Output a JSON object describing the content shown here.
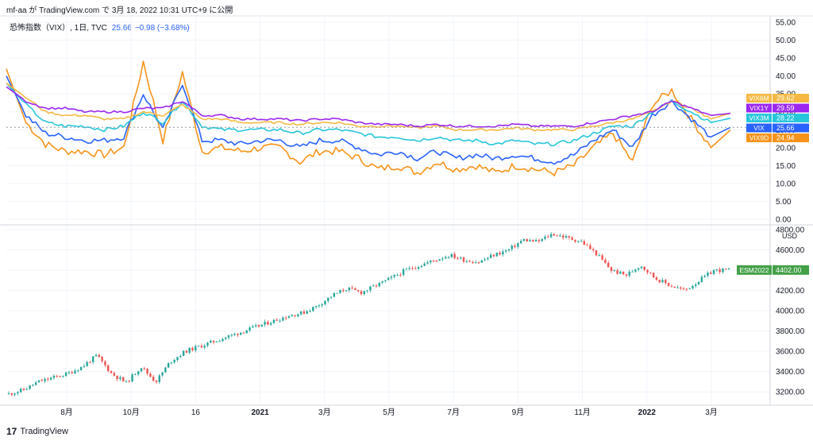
{
  "header": {
    "text": "mf-aa が TradingView.com で 3月 18, 2022 10:31 UTC+9 に公開"
  },
  "legend": {
    "name": "恐怖指数（VIX）, 1日, TVC",
    "value": "25.66",
    "change": "−0.98 (−3.68%)"
  },
  "footer": {
    "logo": "17",
    "brand": "TradingView"
  },
  "chart_data": [
    {
      "type": "line",
      "title": "",
      "ylim": [
        0,
        55
      ],
      "y_ticks": [
        "55.00",
        "50.00",
        "45.00",
        "40.00",
        "35.00",
        "30.00",
        "25.00",
        "20.00",
        "15.00",
        "10.00",
        "5.00",
        "0.00"
      ],
      "x_tick_labels": [
        "8月",
        "10月",
        "16",
        "2021",
        "3月",
        "5月",
        "7月",
        "9月",
        "11月",
        "2022",
        "3月"
      ],
      "series": [
        {
          "name": "VIX6M",
          "color": "#f5b942",
          "last_label": "29.62",
          "values": [
            38,
            34,
            30,
            29,
            29,
            28,
            28,
            30,
            29,
            32,
            28,
            28,
            27,
            27,
            27,
            26.5,
            27,
            27,
            26,
            26,
            26,
            25.5,
            26,
            25,
            25,
            25,
            25.5,
            25,
            25,
            25,
            26,
            27,
            28,
            30,
            33,
            31,
            28,
            29.62
          ]
        },
        {
          "name": "VIX1Y",
          "color": "#9c27f0",
          "last_label": "29.59",
          "values": [
            37,
            33,
            31,
            31,
            30,
            30,
            30,
            31,
            31,
            33,
            29,
            29,
            28,
            28,
            28,
            27.5,
            28,
            28,
            27,
            26.5,
            26.5,
            26,
            26.5,
            26,
            26,
            26,
            26.5,
            26,
            26,
            26,
            27,
            28,
            29,
            30,
            33,
            31,
            29,
            29.59
          ]
        },
        {
          "name": "VIX3M",
          "color": "#26c6da",
          "last_label": "28.22",
          "values": [
            38,
            32,
            27,
            26,
            26,
            25,
            26,
            30,
            27,
            33,
            26,
            25,
            25,
            25,
            25,
            24,
            25,
            25,
            24,
            23,
            23,
            22,
            23,
            22,
            22,
            21,
            22,
            21,
            21,
            22,
            24,
            26,
            26,
            30,
            33,
            30,
            27,
            28.22
          ]
        },
        {
          "name": "VIX",
          "color": "#2962ff",
          "last_label": "25.66",
          "values": [
            40,
            29,
            24,
            23,
            22,
            22,
            23,
            35,
            25,
            38,
            22,
            22,
            21,
            22,
            22,
            20,
            22,
            22,
            20,
            18,
            19,
            17,
            19,
            17,
            18,
            17,
            18,
            17,
            16,
            18,
            22,
            25,
            20,
            29,
            33,
            28,
            23,
            25.66
          ]
        },
        {
          "name": "VIX9D",
          "color": "#f7931a",
          "last_label": "24.94",
          "values": [
            42,
            27,
            21,
            19,
            19,
            18,
            20,
            44,
            22,
            41,
            19,
            20,
            19,
            20,
            20,
            16,
            19,
            19,
            17,
            14,
            15,
            13,
            16,
            14,
            15,
            13,
            15,
            14,
            13,
            15,
            20,
            24,
            16,
            32,
            36,
            28,
            20,
            24.94
          ]
        }
      ]
    },
    {
      "type": "candlestick",
      "title": "",
      "series_name": "ESM2022",
      "last_label": "4402.00",
      "unit": "USD",
      "ylim": [
        3100,
        4800
      ],
      "y_ticks": [
        "4800.00",
        "4600.00",
        "4400.00",
        "4200.00",
        "4000.00",
        "3800.00",
        "3600.00",
        "3400.00",
        "3200.00"
      ],
      "x_tick_labels": [
        "8月",
        "10月",
        "16",
        "2021",
        "3月",
        "5月",
        "7月",
        "9月",
        "11月",
        "2022",
        "3月"
      ],
      "closes": [
        3180,
        3220,
        3300,
        3340,
        3380,
        3450,
        3560,
        3380,
        3290,
        3450,
        3300,
        3500,
        3600,
        3650,
        3700,
        3750,
        3800,
        3850,
        3900,
        3950,
        3980,
        4050,
        4150,
        4220,
        4180,
        4250,
        4320,
        4400,
        4450,
        4500,
        4550,
        4500,
        4480,
        4550,
        4600,
        4700,
        4680,
        4760,
        4720,
        4680,
        4560,
        4400,
        4350,
        4450,
        4320,
        4250,
        4200,
        4300,
        4400,
        4402
      ]
    }
  ]
}
